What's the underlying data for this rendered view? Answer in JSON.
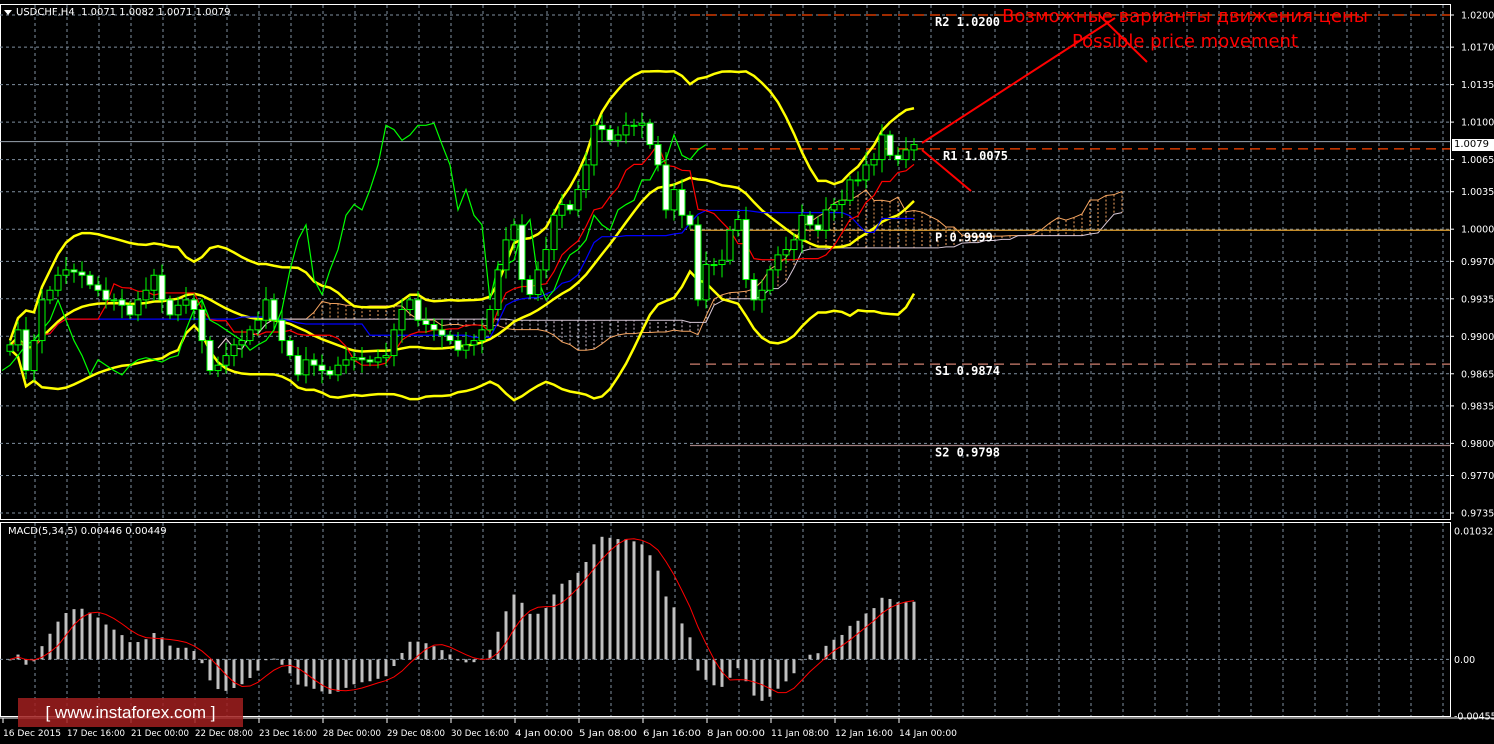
{
  "header": {
    "symbol": "USDCHF,H4",
    "ohlc": "1.0071 1.0082 1.0071 1.0079"
  },
  "macd_header": {
    "label": "MACD(5,34,5) 0.00446 0.00449"
  },
  "annotation": {
    "line1": "Возможные варианты движения цены",
    "line2": "Possible price movement"
  },
  "watermark": "[ www.instaforex.com ]",
  "colors": {
    "background": "#000000",
    "candle": "#00ff00",
    "bollinger": "#ffff00",
    "tenkan": "#ff0000",
    "kijun": "#0000ff",
    "chikou": "#00ff00",
    "annotation": "#ff0000",
    "macd_hist": "#c0c0c0",
    "macd_signal": "#ff0000",
    "grid": "#8090a0"
  },
  "chart_data": [
    {
      "type": "candlestick",
      "symbol": "USDCHF,H4",
      "ylim": [
        0.9735,
        1.02
      ],
      "current_price": "1.0079",
      "closes": [
        0.9892,
        0.9906,
        0.9868,
        0.9896,
        0.9934,
        0.9943,
        0.9957,
        0.9962,
        0.996,
        0.9957,
        0.9948,
        0.9943,
        0.9934,
        0.9934,
        0.9929,
        0.992,
        0.9934,
        0.9943,
        0.9957,
        0.9934,
        0.992,
        0.9929,
        0.9934,
        0.9925,
        0.9896,
        0.9868,
        0.9873,
        0.9882,
        0.9892,
        0.9896,
        0.9906,
        0.9915,
        0.9934,
        0.9915,
        0.9896,
        0.9882,
        0.9864,
        0.9878,
        0.9873,
        0.9868,
        0.9864,
        0.9873,
        0.9878,
        0.988,
        0.9878,
        0.9876,
        0.988,
        0.9882,
        0.9906,
        0.9925,
        0.9934,
        0.9915,
        0.9911,
        0.9906,
        0.9901,
        0.9896,
        0.9887,
        0.9892,
        0.9896,
        0.9906,
        0.9925,
        0.9962,
        0.999,
        1.0004,
        0.9953,
        0.9939,
        0.9962,
        0.9981,
        1.0013,
        1.0023,
        1.0018,
        1.0037,
        1.006,
        1.0097,
        1.0093,
        1.0083,
        1.0088,
        1.0097,
        1.0097,
        1.0099,
        1.0079,
        1.006,
        1.0018,
        1.0037,
        1.0013,
        1.0004,
        0.9934,
        0.9967,
        0.9967,
        0.9971,
        0.9999,
        1.0009,
        0.9953,
        0.9934,
        0.9943,
        0.9962,
        0.9976,
        0.9981,
        0.999,
        1.0013,
        1.0004,
        0.9999,
        1.0018,
        1.0023,
        1.0027,
        1.0046,
        1.0046,
        1.006,
        1.0065,
        1.0088,
        1.0069,
        1.0065,
        1.0074,
        1.0079
      ],
      "y_ticks": [
        "1.0200",
        "1.0170",
        "1.0135",
        "1.0100",
        "1.0065",
        "1.0035",
        "1.0000",
        "0.9970",
        "0.9935",
        "0.9900",
        "0.9865",
        "0.9835",
        "0.9800",
        "0.9770",
        "0.9735"
      ],
      "x_tick_labels": [
        "16 Dec 2015",
        "17 Dec 16:00",
        "21 Dec 00:00",
        "22 Dec 08:00",
        "23 Dec 16:00",
        "28 Dec 00:00",
        "29 Dec 08:00",
        "30 Dec 16:00",
        "4 Jan 00:00",
        "5 Jan 08:00",
        "6 Jan 16:00",
        "8 Jan 00:00",
        "11 Jan 08:00",
        "12 Jan 16:00",
        "14 Jan 00:00"
      ],
      "indicators": [
        "Bollinger Bands",
        "Ichimoku"
      ],
      "pivots": [
        {
          "label": "R2 1.0200",
          "value": 1.02,
          "color": "#ff4500",
          "style": "dashed"
        },
        {
          "label": "R1 1.0075",
          "value": 1.0075,
          "color": "#ff4500",
          "style": "dashed"
        },
        {
          "label": "P 0.9999",
          "value": 0.9999,
          "color": "#e0a030",
          "style": "solid"
        },
        {
          "label": "S1 0.9874",
          "value": 0.9874,
          "color": "#d08070",
          "style": "dashed"
        },
        {
          "label": "S2 0.9798",
          "value": 0.9798,
          "color": "#a08080",
          "style": "solid"
        }
      ]
    },
    {
      "type": "bar",
      "title": "MACD(5,34,5)",
      "main_value": 0.00446,
      "signal_value": 0.00449,
      "ylim": [
        -0.00455,
        0.01032
      ],
      "y_ticks": [
        "0.01032",
        "0.00",
        "-0.00455"
      ]
    }
  ]
}
